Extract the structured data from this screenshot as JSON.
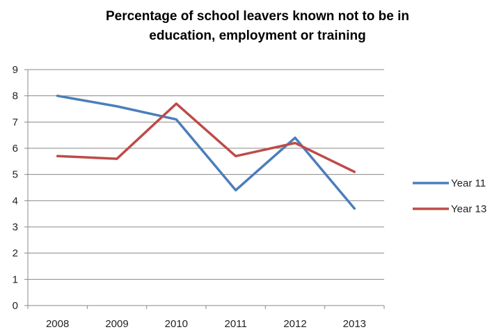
{
  "chart_data": {
    "type": "line",
    "title": "Percentage of school leavers known not to be in\neducation, employment or training",
    "xlabel": "",
    "ylabel": "",
    "categories": [
      "2008",
      "2009",
      "2010",
      "2011",
      "2012",
      "2013"
    ],
    "series": [
      {
        "name": "Year 11",
        "color": "#4A7EBB",
        "values": [
          8.0,
          7.6,
          7.1,
          4.4,
          6.4,
          3.7
        ]
      },
      {
        "name": "Year 13",
        "color": "#BE4B48",
        "values": [
          5.7,
          5.6,
          7.7,
          5.7,
          6.2,
          5.1
        ]
      }
    ],
    "ylim": [
      0,
      9
    ],
    "yticks": [
      "0",
      "1",
      "2",
      "3",
      "4",
      "5",
      "6",
      "7",
      "8",
      "9"
    ],
    "grid": true,
    "legend_position": "right"
  }
}
